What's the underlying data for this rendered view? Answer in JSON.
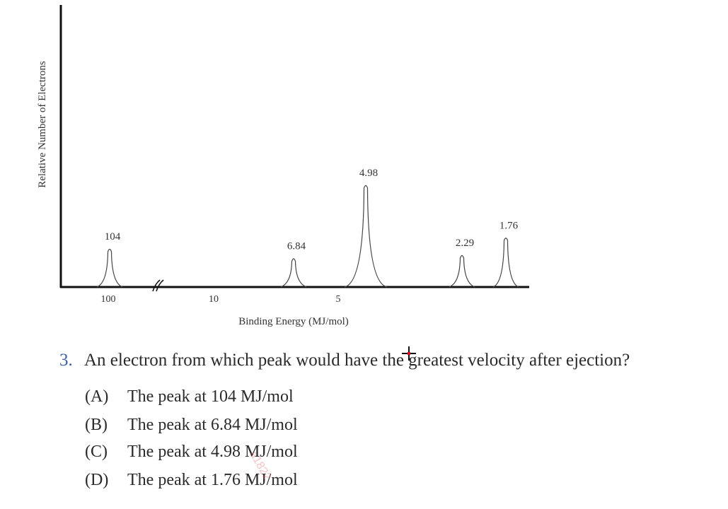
{
  "chart_data": {
    "type": "line",
    "subtype": "photoelectron-spectrum",
    "xlabel": "Binding Energy (MJ/mol)",
    "ylabel": "Relative Number of Electrons",
    "x_axis_reversed": true,
    "x_axis_break": true,
    "x_ticks": [
      "100",
      "10",
      "5"
    ],
    "x_tick_values": [
      100,
      10,
      5
    ],
    "grid": false,
    "peaks": [
      {
        "label": "104",
        "energy": 104,
        "relative_height": 1.2
      },
      {
        "label": "6.84",
        "energy": 6.84,
        "relative_height": 0.9
      },
      {
        "label": "4.98",
        "energy": 4.98,
        "relative_height": 3.2
      },
      {
        "label": "2.29",
        "energy": 2.29,
        "relative_height": 1.0
      },
      {
        "label": "1.76",
        "energy": 1.76,
        "relative_height": 1.55
      }
    ]
  },
  "question": {
    "number": "3.",
    "text": "An electron from which peak would have the greatest velocity after ejection?",
    "options": [
      {
        "letter": "(A)",
        "text": "The peak at 104 MJ/mol"
      },
      {
        "letter": "(B)",
        "text": "The peak at 6.84 MJ/mol"
      },
      {
        "letter": "(C)",
        "text": "The peak at 4.98 MJ/mol"
      },
      {
        "letter": "(D)",
        "text": "The peak at 1.76 MJ/mol"
      }
    ]
  },
  "watermark": "a1822",
  "colors": {
    "question_number": "#3b5fa8",
    "cursor_dot": "#e0102a"
  }
}
